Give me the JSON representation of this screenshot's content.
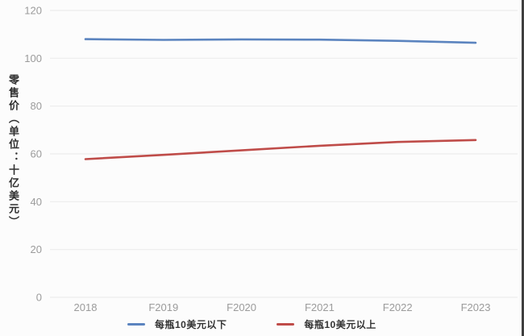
{
  "chart_data": {
    "type": "line",
    "x": [
      "2018",
      "F2019",
      "F2020",
      "F2021",
      "F2022",
      "F2023"
    ],
    "series": [
      {
        "name": "每瓶10美元以下",
        "color": "#5b84bf",
        "values": [
          108,
          107.7,
          107.9,
          107.8,
          107.3,
          106.5
        ]
      },
      {
        "name": "每瓶10美元以上",
        "color": "#bf4c49",
        "values": [
          57.8,
          59.6,
          61.5,
          63.4,
          65.0,
          65.8
        ]
      }
    ],
    "ylabel": "零售价（单位：十亿美元）",
    "yticks": [
      0,
      20,
      40,
      60,
      80,
      100,
      120
    ],
    "ylim": [
      0,
      120
    ],
    "grid": true,
    "legend_position": "bottom"
  },
  "colors": {
    "grid_line": "#ececec",
    "tick_label": "#9b9b9b",
    "axis_title": "#2f2f2f",
    "legend_text": "#333333",
    "background": "#fcfcfc",
    "frame_border": "#3f3f3f"
  }
}
